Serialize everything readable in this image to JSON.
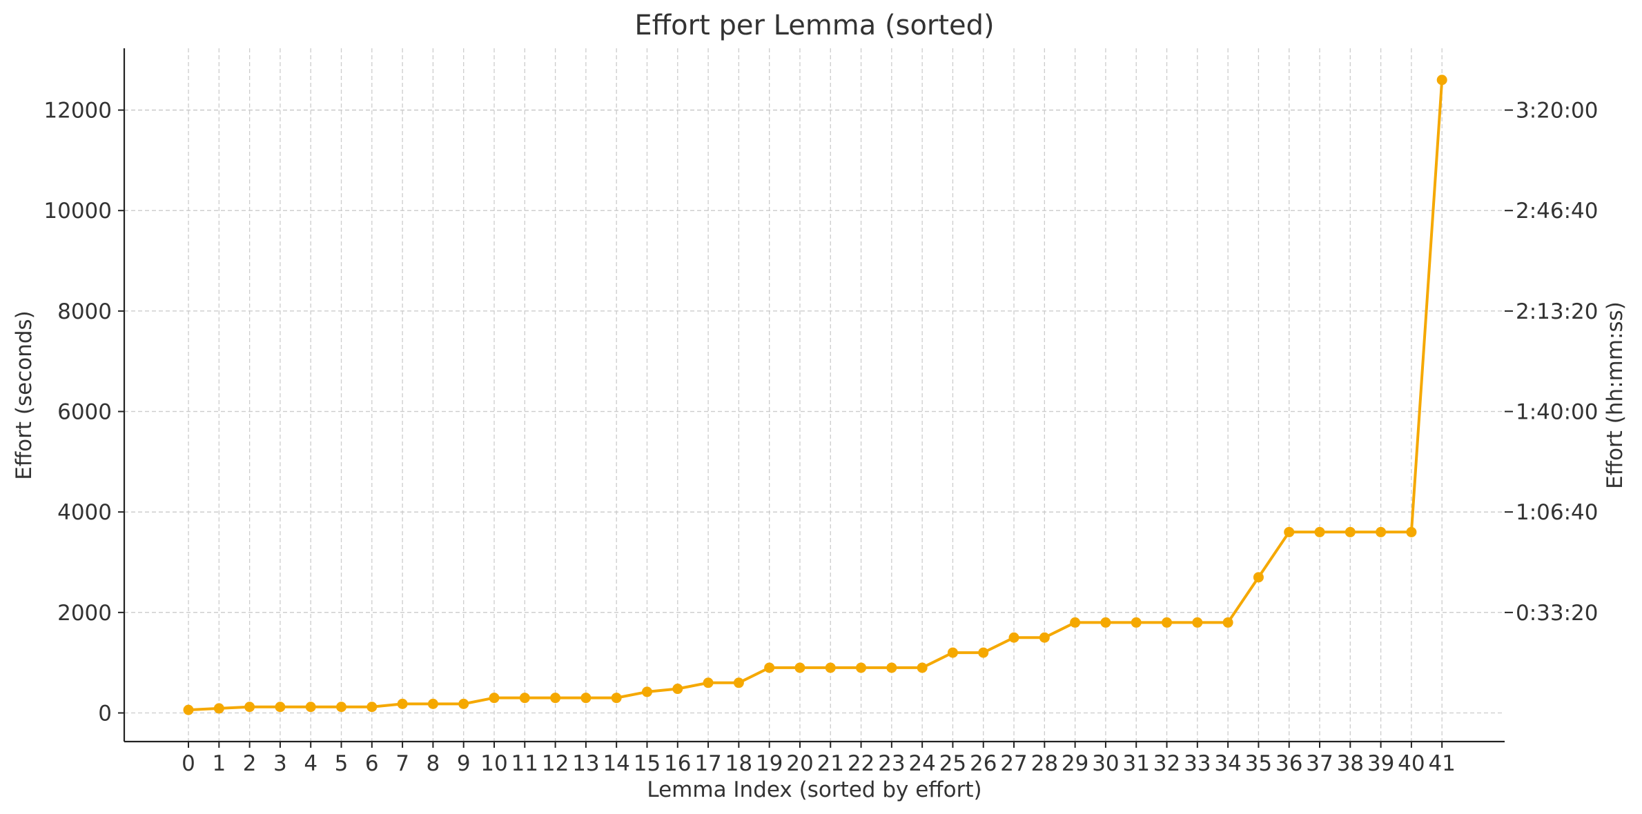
{
  "chart_data": {
    "type": "line",
    "title": "Effort per Lemma (sorted)",
    "xlabel": "Lemma Index (sorted by effort)",
    "ylabel": "Effort (seconds)",
    "ylabel_right": "Effort (hh:mm:ss)",
    "x": [
      0,
      1,
      2,
      3,
      4,
      5,
      6,
      7,
      8,
      9,
      10,
      11,
      12,
      13,
      14,
      15,
      16,
      17,
      18,
      19,
      20,
      21,
      22,
      23,
      24,
      25,
      26,
      27,
      28,
      29,
      30,
      31,
      32,
      33,
      34,
      35,
      36,
      37,
      38,
      39,
      40,
      41
    ],
    "x_ticks": [
      "0",
      "1",
      "2",
      "3",
      "4",
      "5",
      "6",
      "7",
      "8",
      "9",
      "10",
      "11",
      "12",
      "13",
      "14",
      "15",
      "16",
      "17",
      "18",
      "19",
      "20",
      "21",
      "22",
      "23",
      "24",
      "25",
      "26",
      "27",
      "28",
      "29",
      "30",
      "31",
      "32",
      "33",
      "34",
      "35",
      "36",
      "37",
      "38",
      "39",
      "40",
      "41"
    ],
    "series": [
      {
        "values": [
          60,
          90,
          120,
          120,
          120,
          120,
          120,
          180,
          180,
          180,
          300,
          300,
          300,
          300,
          300,
          420,
          480,
          600,
          600,
          900,
          900,
          900,
          900,
          900,
          900,
          1200,
          1200,
          1500,
          1500,
          1800,
          1800,
          1800,
          1800,
          1800,
          1800,
          2700,
          3600,
          3600,
          3600,
          3600,
          3600,
          12600
        ],
        "color": "#F5A800"
      }
    ],
    "ylim": [
      -570,
      13230
    ],
    "xlim": [
      -2.1,
      43.05
    ],
    "y_ticks": [
      0,
      2000,
      4000,
      6000,
      8000,
      10000,
      12000
    ],
    "y_tick_labels": [
      "0",
      "2000",
      "4000",
      "6000",
      "8000",
      "10000",
      "12000"
    ],
    "y2_ticks": [
      2000,
      4000,
      6000,
      8000,
      10000,
      12000
    ],
    "y2_tick_labels": [
      "0:33:20",
      "1:06:40",
      "1:40:00",
      "2:13:20",
      "2:46:40",
      "3:20:00"
    ],
    "grid": true,
    "legend": "none"
  }
}
